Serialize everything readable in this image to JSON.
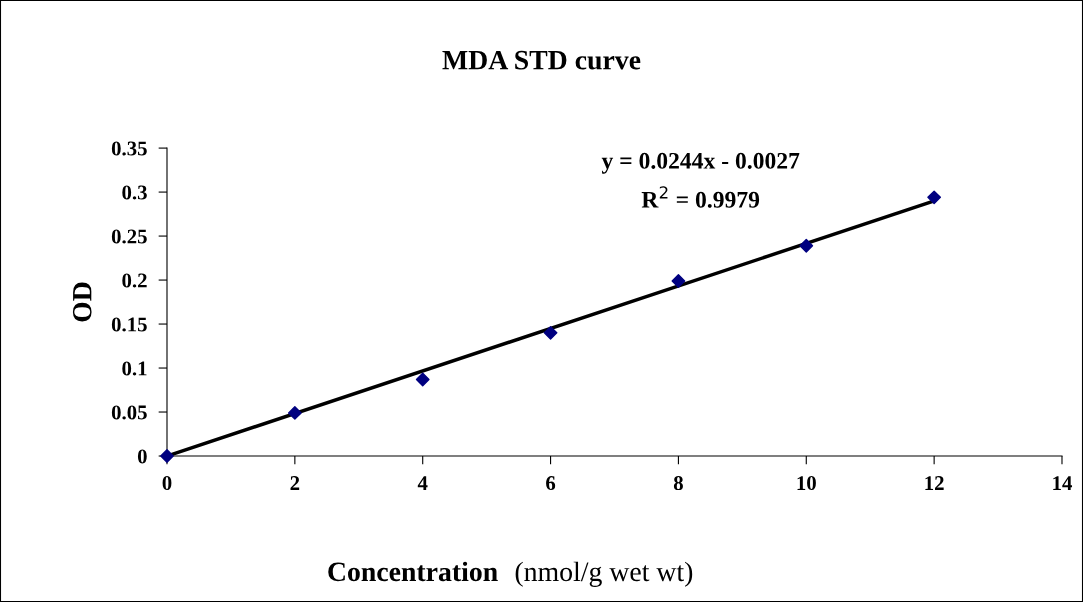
{
  "chart_data": {
    "type": "scatter",
    "title": "MDA STD curve",
    "xlabel": "Concentration",
    "ylabel": "OD",
    "x": [
      0,
      2,
      4,
      6,
      8,
      10,
      12
    ],
    "series": [
      {
        "color": "#000080",
        "marker": "diamond",
        "values": [
          0,
          0.049,
          0.087,
          0.14,
          0.199,
          0.239,
          0.294
        ]
      },
      {
        "type": "line",
        "color": "#000000",
        "marker": "none",
        "line_style": "solid",
        "x": [
          0,
          12
        ],
        "values": [
          0,
          0.29
        ]
      }
    ],
    "xlim": [
      0,
      14
    ],
    "xticks": [
      0,
      2,
      4,
      6,
      8,
      10,
      12,
      14
    ],
    "ylim": [
      0,
      0.35
    ],
    "yticks": [
      0,
      0.05,
      0.1,
      0.15,
      0.2,
      0.25,
      0.3,
      0.35
    ],
    "grid": false,
    "legend": false,
    "annotations": [
      "(nmol/g wet wt)",
      "y = 0.0244x - 0.0027",
      "R$^{2}$ = 0.9979"
    ]
  }
}
